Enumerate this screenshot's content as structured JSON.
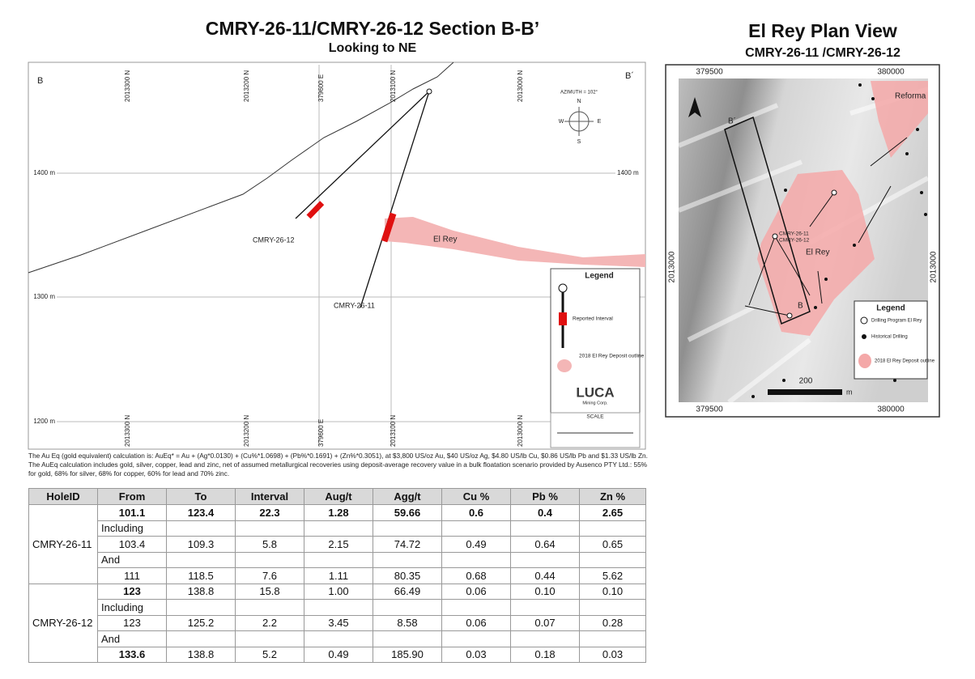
{
  "section": {
    "title": "CMRY-26-11/CMRY-26-12 Section B-B’",
    "subtitle": "Looking to NE",
    "corner_left": "B",
    "corner_right": "B´",
    "top_labels": [
      "2013300 N",
      "2013200 N",
      "379600 E",
      "2013100 N",
      "2013000 N"
    ],
    "bottom_labels": [
      "2013300 N",
      "2013200 N",
      "379600 E",
      "2013100 N",
      "2013000 N"
    ],
    "elevations_left": [
      "1400 m",
      "1300 m",
      "1200 m"
    ],
    "elevations_right": [
      "1400 m"
    ],
    "holes": [
      "CMRY-26-12",
      "CMRY-26-11"
    ],
    "deposit": "El Rey",
    "compass": {
      "azimuth": "AZIMUTH = 102°",
      "n": "N",
      "e": "E",
      "s": "S",
      "w": "W"
    },
    "legend": {
      "title": "Legend",
      "interval": "Reported Interval",
      "outline": "2018 El Rey Deposit outline"
    },
    "logo": {
      "name": "LUCA",
      "sub": "Mining Corp."
    },
    "scale": "SCALE"
  },
  "footnote": "The Au Eq (gold equivalent) calculation is: AuEq* = Au + (Ag*0.0130) + (Cu%*1.0698) + (Pb%*0.1691) + (Zn%*0.3051), at $3,800 US/oz Au, $40 US/oz Ag, $4.80 US/lb Cu, $0.86 US/lb Pb and $1.33 US/lb Zn. The AuEq calculation includes gold, silver, copper, lead and zinc, net of assumed metallurgical recoveries using deposit-average recovery value in a bulk floatation scenario provided by Ausenco PTY Ltd.: 55% for gold, 68% for silver, 68% for copper, 60% for lead and 70% zinc.",
  "map": {
    "title": "El Rey Plan View",
    "subtitle": "CMRY-26-11 /CMRY-26-12",
    "top_labels": [
      "379500",
      "380000"
    ],
    "bottom_labels": [
      "379500",
      "380000"
    ],
    "left_label": "2013000",
    "right_label": "2013000",
    "labels": {
      "reforma": "Reforma",
      "b_prime": "B´",
      "b": "B",
      "el_rey": "El Rey",
      "hole_a": "CMRY-26-11",
      "hole_b": "CMRY-26-12"
    },
    "legend": {
      "title": "Legend",
      "program": "Drilling Program El Rey",
      "historical": "Historical Drilling",
      "outline": "2018 El Rey Deposit outline"
    },
    "scale": "200",
    "scale_unit": "m"
  },
  "table": {
    "columns": [
      "HoleID",
      "From",
      "To",
      "Interval",
      "Aug/t",
      "Agg/t",
      "Cu %",
      "Pb %",
      "Zn %"
    ],
    "groups": [
      {
        "hole": "CMRY-26-11",
        "rows": [
          [
            "101.1",
            "123.4",
            "22.3",
            "1.28",
            "59.66",
            "0.6",
            "0.4",
            "2.65"
          ],
          [
            "Including",
            null,
            null,
            null,
            null,
            null,
            null,
            null
          ],
          [
            "103.4",
            "109.3",
            "5.8",
            "2.15",
            "74.72",
            "0.49",
            "0.64",
            "0.65"
          ],
          [
            "And",
            null,
            null,
            null,
            null,
            null,
            null,
            null
          ],
          [
            "111",
            "118.5",
            "7.6",
            "1.11",
            "80.35",
            "0.68",
            "0.44",
            "5.62"
          ]
        ]
      },
      {
        "hole": "CMRY-26-12",
        "rows": [
          [
            "123",
            "138.8",
            "15.8",
            "1.00",
            "66.49",
            "0.06",
            "0.10",
            "0.10"
          ],
          [
            "Including",
            null,
            null,
            null,
            null,
            null,
            null,
            null
          ],
          [
            "123",
            "125.2",
            "2.2",
            "3.45",
            "8.58",
            "0.06",
            "0.07",
            "0.28"
          ],
          [
            "And",
            null,
            null,
            null,
            null,
            null,
            null,
            null
          ],
          [
            "133.6",
            "138.8",
            "5.2",
            "0.49",
            "185.90",
            "0.03",
            "0.18",
            "0.03"
          ]
        ]
      }
    ]
  }
}
